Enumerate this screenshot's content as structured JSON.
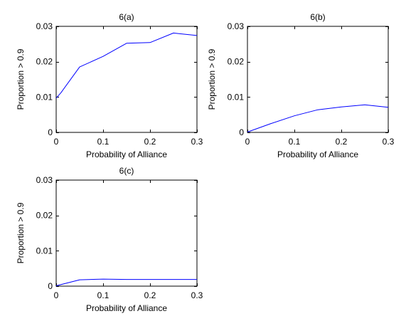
{
  "colors": {
    "line": "#0000ff",
    "axes": "#000000",
    "background": "#ffffff"
  },
  "chart_data": [
    {
      "type": "line",
      "title": "6(a)",
      "xlabel": "Probability of Alliance",
      "ylabel": "Proportion > 0.9",
      "xlim": [
        0,
        0.3
      ],
      "ylim": [
        0,
        0.03
      ],
      "xticks": [
        0,
        0.1,
        0.2,
        0.3
      ],
      "xtick_labels": [
        "0",
        "0.1",
        "0.2",
        "0.3"
      ],
      "yticks": [
        0,
        0.01,
        0.02,
        0.03
      ],
      "ytick_labels": [
        "0",
        "0.01",
        "0.02",
        "0.03"
      ],
      "grid": false,
      "series": [
        {
          "x": [
            0,
            0.01,
            0.05,
            0.1,
            0.15,
            0.2,
            0.25,
            0.3
          ],
          "y": [
            0.0097,
            0.0112,
            0.0185,
            0.0215,
            0.0252,
            0.0254,
            0.0281,
            0.0274
          ]
        }
      ]
    },
    {
      "type": "line",
      "title": "6(b)",
      "xlabel": "Probability of Alliance",
      "ylabel": "Proportion > 0.9",
      "xlim": [
        0,
        0.3
      ],
      "ylim": [
        0,
        0.03
      ],
      "xticks": [
        0,
        0.1,
        0.2,
        0.3
      ],
      "xtick_labels": [
        "0",
        "0.1",
        "0.2",
        "0.3"
      ],
      "yticks": [
        0,
        0.01,
        0.02,
        0.03
      ],
      "ytick_labels": [
        "0",
        "0.01",
        "0.02",
        "0.03"
      ],
      "grid": false,
      "series": [
        {
          "x": [
            0,
            0.05,
            0.1,
            0.15,
            0.2,
            0.25,
            0.3
          ],
          "y": [
            0.0001,
            0.0025,
            0.0047,
            0.0064,
            0.0072,
            0.0078,
            0.0071
          ]
        }
      ]
    },
    {
      "type": "line",
      "title": "6(c)",
      "xlabel": "Probability of Alliance",
      "ylabel": "Proportion > 0.9",
      "xlim": [
        0,
        0.3
      ],
      "ylim": [
        0,
        0.03
      ],
      "xticks": [
        0,
        0.1,
        0.2,
        0.3
      ],
      "xtick_labels": [
        "0",
        "0.1",
        "0.2",
        "0.3"
      ],
      "yticks": [
        0,
        0.01,
        0.02,
        0.03
      ],
      "ytick_labels": [
        "0",
        "0.01",
        "0.02",
        "0.03"
      ],
      "grid": false,
      "series": [
        {
          "x": [
            0,
            0.05,
            0.1,
            0.15,
            0.2,
            0.25,
            0.3
          ],
          "y": [
            0.0001,
            0.0018,
            0.002,
            0.0019,
            0.0019,
            0.0019,
            0.0019
          ]
        }
      ]
    }
  ]
}
